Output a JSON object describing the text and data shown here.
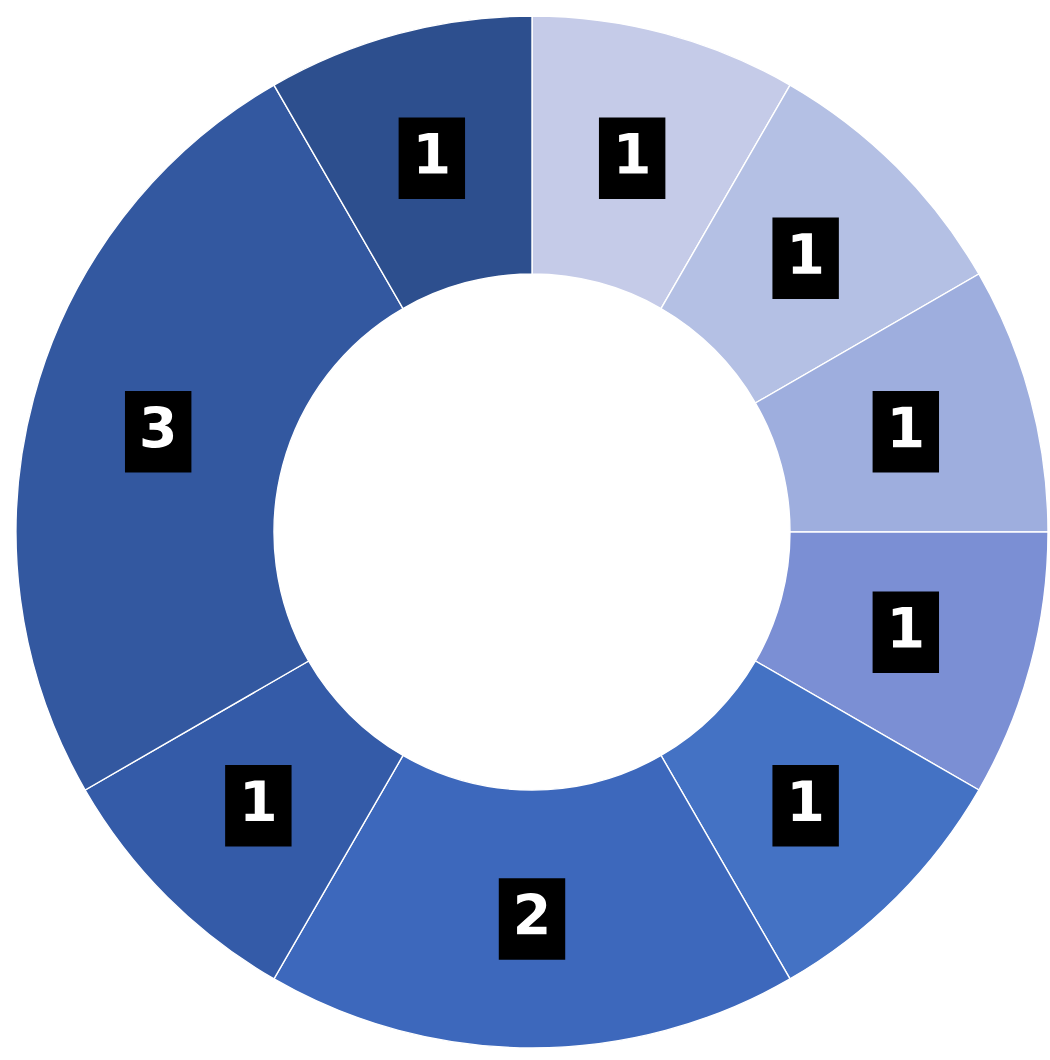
{
  "chart_data": {
    "type": "donut",
    "categories": [
      null,
      null,
      null,
      null,
      null,
      null,
      null,
      null,
      null
    ],
    "values": [
      1,
      1,
      1,
      1,
      1,
      2,
      1,
      3,
      1
    ],
    "colors": [
      "#c5cbe8",
      "#b4c0e4",
      "#9eaede",
      "#7b8fd4",
      "#4472c4",
      "#3d68bc",
      "#345ba8",
      "#3358a0",
      "#2d4f8e"
    ],
    "data_labels": true
  }
}
